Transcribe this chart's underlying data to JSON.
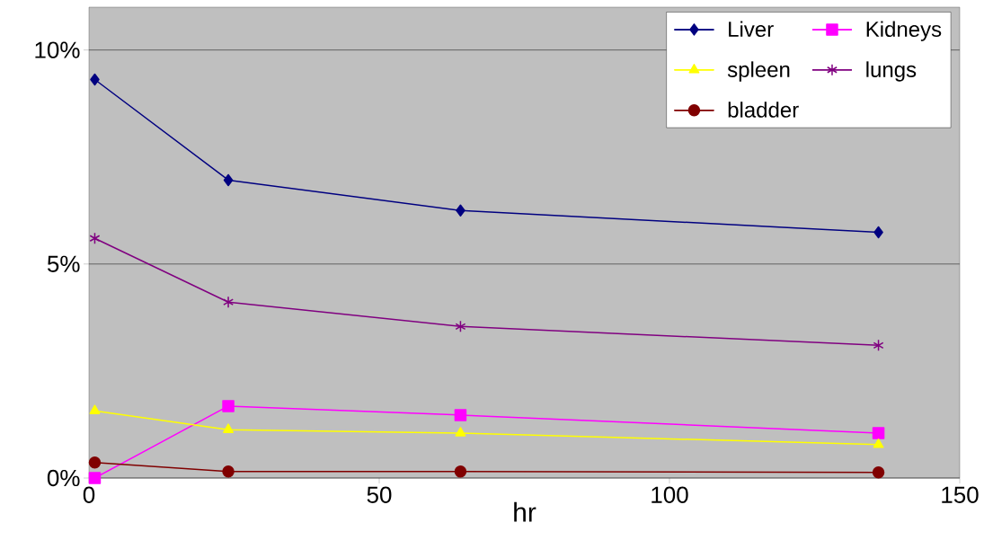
{
  "chart_data": {
    "type": "line",
    "xlabel": "hr",
    "x": [
      1,
      24,
      64,
      136
    ],
    "series": [
      {
        "name": "Liver",
        "color": "#000080",
        "marker": "diamond",
        "values": [
          9.31,
          6.96,
          6.25,
          5.74
        ]
      },
      {
        "name": "Kidneys",
        "color": "#ff00ff",
        "marker": "square",
        "values": [
          0.0,
          1.68,
          1.47,
          1.05
        ]
      },
      {
        "name": "spleen",
        "color": "#ffff00",
        "marker": "triangle",
        "values": [
          1.57,
          1.13,
          1.05,
          0.78
        ]
      },
      {
        "name": "lungs",
        "color": "#800080",
        "marker": "cross",
        "values": [
          5.6,
          4.11,
          3.54,
          3.1
        ]
      },
      {
        "name": "bladder",
        "color": "#800000",
        "marker": "circle",
        "values": [
          0.36,
          0.15,
          0.15,
          0.13
        ]
      }
    ],
    "xlim": [
      0,
      150
    ],
    "xticks": [
      0,
      50,
      100,
      150
    ],
    "ylim": [
      0,
      11
    ],
    "yticks": [
      {
        "value": 0,
        "label": "0%"
      },
      {
        "value": 5,
        "label": "5%"
      },
      {
        "value": 10,
        "label": "10%"
      }
    ],
    "grid": "y",
    "legend": "top right",
    "line_style": "solid"
  }
}
